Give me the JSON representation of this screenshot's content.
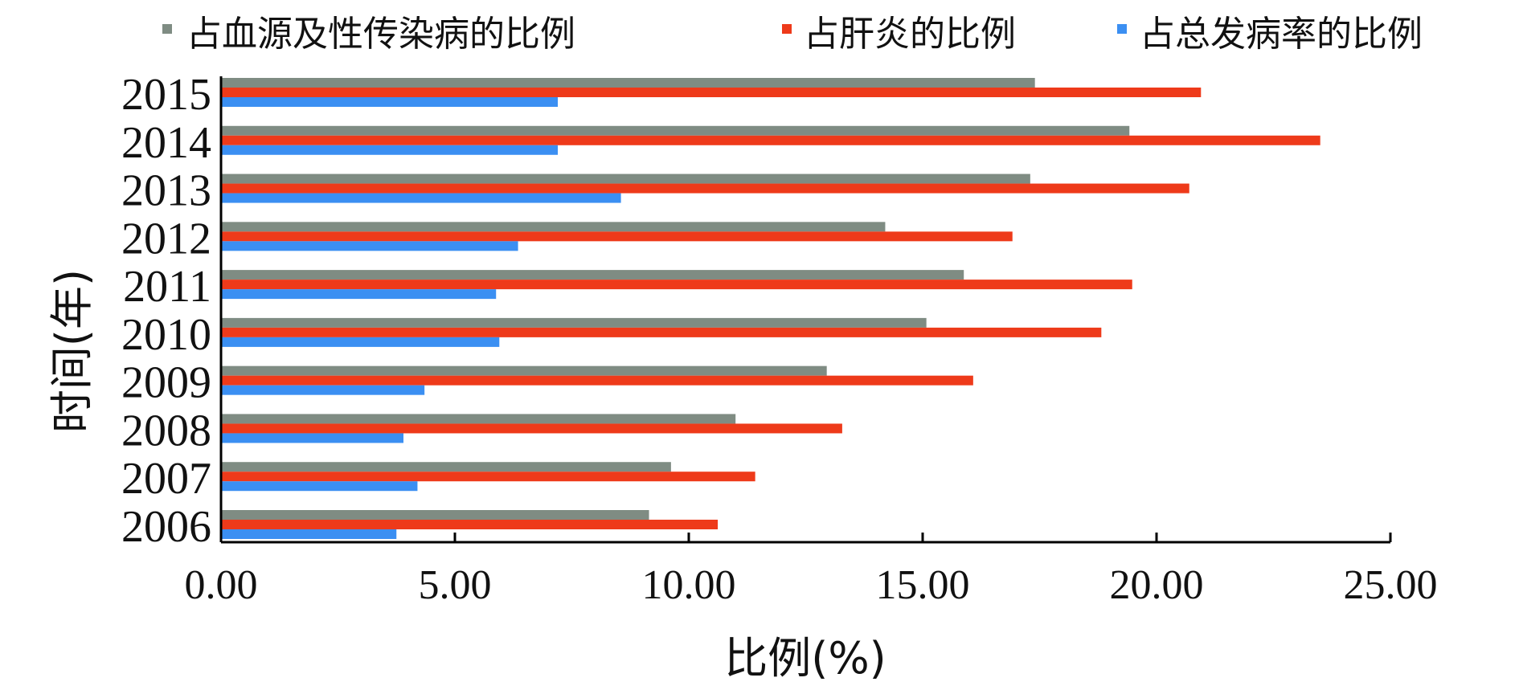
{
  "chart_data": {
    "type": "bar",
    "orientation": "horizontal",
    "categories": [
      "2006",
      "2007",
      "2008",
      "2009",
      "2010",
      "2011",
      "2012",
      "2013",
      "2014",
      "2015"
    ],
    "series": [
      {
        "name": "占血源及性传染病的比例",
        "color": "#7f8c83",
        "values": [
          9.15,
          9.62,
          11.0,
          12.95,
          15.08,
          15.88,
          14.2,
          17.3,
          19.42,
          17.4
        ]
      },
      {
        "name": "占肝炎的比例",
        "color": "#ee3a1a",
        "values": [
          10.62,
          11.42,
          13.28,
          16.08,
          18.82,
          19.48,
          16.92,
          20.7,
          23.5,
          20.95
        ]
      },
      {
        "name": "占总发病率的比例",
        "color": "#3b8ff2",
        "values": [
          3.75,
          4.2,
          3.9,
          4.35,
          5.95,
          5.88,
          6.35,
          8.55,
          7.2,
          7.2
        ]
      }
    ],
    "xlabel": "比例(%)",
    "ylabel": "时间(年)",
    "xlim": [
      0,
      25
    ],
    "xticks": [
      "0.00",
      "5.00",
      "10.00",
      "15.00",
      "20.00",
      "25.00"
    ],
    "legend_position": "top",
    "grid": false
  }
}
